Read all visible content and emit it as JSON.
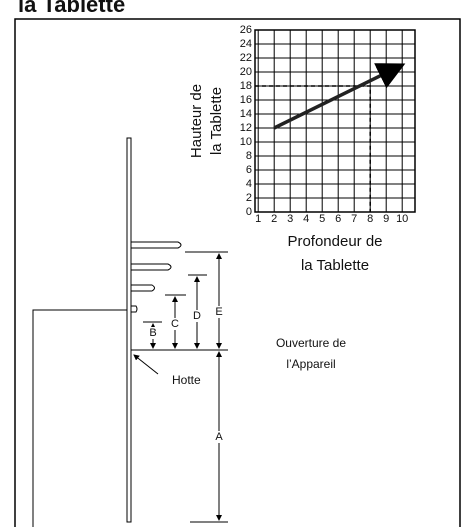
{
  "title": "la Tablette",
  "chart": {
    "type": "line",
    "y_label": [
      "Hauteur de",
      "la Tablette"
    ],
    "x_label": [
      "Profondeur de",
      "la Tablette"
    ],
    "xlim": [
      0.8,
      10.8
    ],
    "ylim": [
      0,
      26
    ],
    "xticks": [
      1,
      2,
      3,
      4,
      5,
      6,
      7,
      8,
      9,
      10
    ],
    "yticks": [
      0,
      2,
      4,
      6,
      8,
      10,
      12,
      14,
      16,
      18,
      20,
      22,
      24,
      26
    ],
    "x": [
      2,
      10
    ],
    "values": [
      12,
      21
    ],
    "guide": {
      "x": 8,
      "y": 18
    }
  },
  "dimensions": {
    "A": "A",
    "B": "B",
    "C": "C",
    "D": "D",
    "E": "E"
  },
  "labels": {
    "opening": [
      "Ouverture de",
      "l’Appareil"
    ],
    "hood": "Hotte"
  }
}
